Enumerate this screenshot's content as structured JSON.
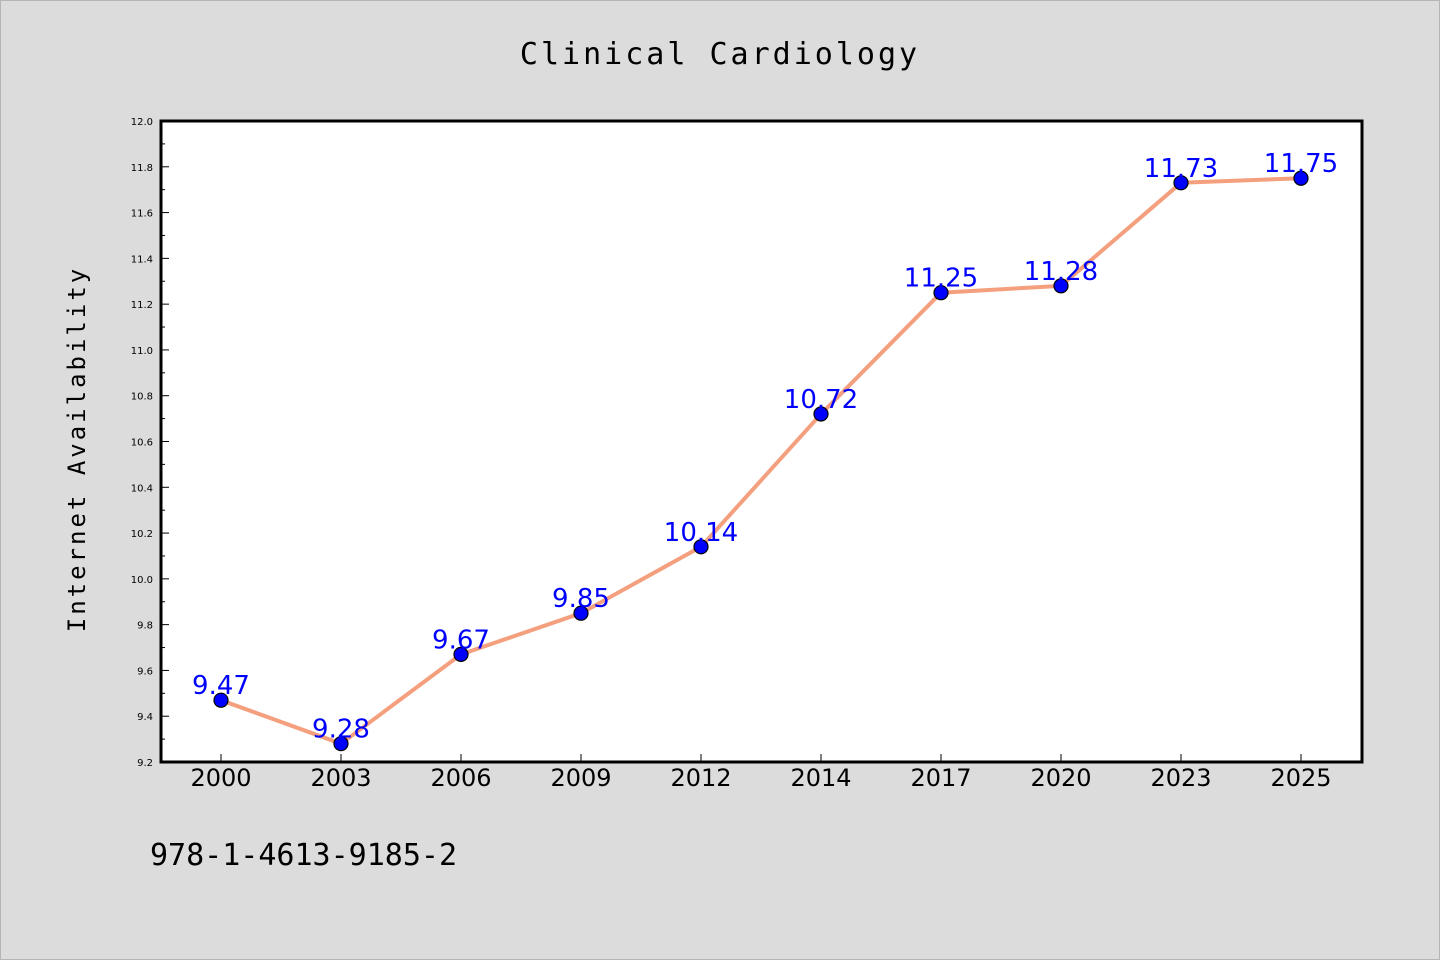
{
  "chart_data": {
    "type": "line",
    "title": "Clinical Cardiology",
    "xlabel": "",
    "ylabel": "Internet Availability",
    "categories": [
      "2000",
      "2003",
      "2006",
      "2009",
      "2012",
      "2014",
      "2017",
      "2020",
      "2023",
      "2025"
    ],
    "series": [
      {
        "values": [
          9.47,
          9.28,
          9.67,
          9.85,
          10.14,
          10.72,
          11.25,
          11.28,
          11.73,
          11.75
        ],
        "data_labels": [
          "9.47",
          "9.28",
          "9.67",
          "9.85",
          "10.14",
          "10.72",
          "11.25",
          "11.28",
          "11.73",
          "11.75"
        ],
        "line_color": "#f4a07e",
        "marker_color": "#0000ff"
      }
    ],
    "ylim": [
      9.2,
      12.0
    ],
    "yticks": [
      "9.2",
      "9.4",
      "9.6",
      "9.8",
      "10.0",
      "10.2",
      "10.4",
      "10.6",
      "10.8",
      "11.0",
      "11.2",
      "11.4",
      "11.6",
      "11.8",
      "12.0"
    ],
    "grid": false,
    "legend": "none"
  },
  "footer": {
    "isbn": "978-1-4613-9185-2"
  }
}
